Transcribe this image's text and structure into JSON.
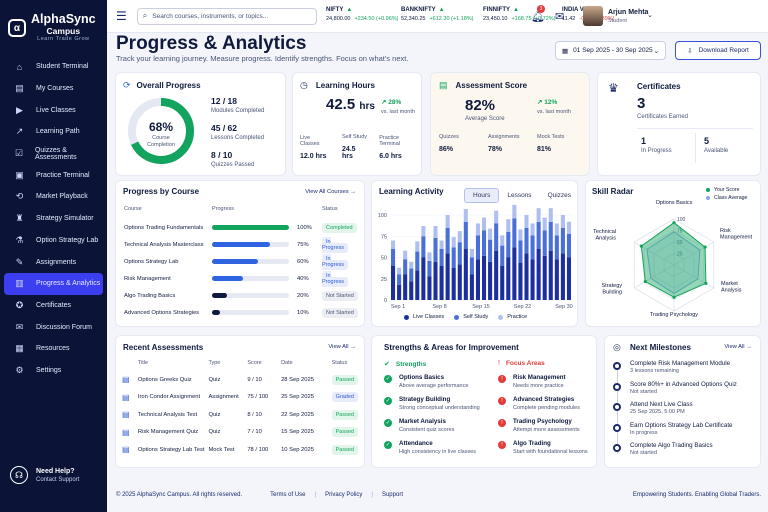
{
  "brand": {
    "name": "AlphaSync",
    "sub": "Campus",
    "tagline": "Learn  Trade  Grow"
  },
  "sidebar": {
    "items": [
      {
        "label": "Student Terminal",
        "icon": "home-icon",
        "glyph": "⌂"
      },
      {
        "label": "My Courses",
        "icon": "book-icon",
        "glyph": "▤"
      },
      {
        "label": "Live Classes",
        "icon": "video-icon",
        "glyph": "▶"
      },
      {
        "label": "Learning Path",
        "icon": "trend-icon",
        "glyph": "↗"
      },
      {
        "label": "Quizzes & Assessments",
        "icon": "quiz-icon",
        "glyph": "☑"
      },
      {
        "label": "Practice Terminal",
        "icon": "terminal-icon",
        "glyph": "▣"
      },
      {
        "label": "Market Playback",
        "icon": "playback-icon",
        "glyph": "⟲"
      },
      {
        "label": "Strategy Simulator",
        "icon": "simulator-icon",
        "glyph": "♜"
      },
      {
        "label": "Option Strategy Lab",
        "icon": "lab-icon",
        "glyph": "⚗"
      },
      {
        "label": "Assignments",
        "icon": "assignment-icon",
        "glyph": "✎"
      },
      {
        "label": "Progress & Analytics",
        "icon": "chart-icon",
        "glyph": "▥"
      },
      {
        "label": "Certificates",
        "icon": "certificate-icon",
        "glyph": "✪"
      },
      {
        "label": "Discussion Forum",
        "icon": "forum-icon",
        "glyph": "✉"
      },
      {
        "label": "Resources",
        "icon": "resources-icon",
        "glyph": "▦"
      },
      {
        "label": "Settings",
        "icon": "gear-icon",
        "glyph": "⚙"
      }
    ],
    "active": "Progress & Analytics",
    "help_title": "Need Help?",
    "help_sub": "Contact Support"
  },
  "topbar": {
    "search_placeholder": "Search courses, instruments, or topics...",
    "tickers": [
      {
        "name": "NIFTY",
        "price": "24,800.00",
        "change": "+234.50 (+0.96%)",
        "dir": "up"
      },
      {
        "name": "BANKNIFTY",
        "price": "52,340.25",
        "change": "+612.30 (+1.18%)",
        "dir": "up"
      },
      {
        "name": "FINNIFTY",
        "price": "23,450.10",
        "change": "+168.75 (+0.72%)",
        "dir": "up"
      },
      {
        "name": "INDIA VIX",
        "price": "11.42",
        "change": "-0.28 (-2.39%)",
        "dir": "down"
      }
    ],
    "notif_count": "3",
    "user_name": "Arjun Mehta",
    "user_role": "Student"
  },
  "page": {
    "title": "Progress & Analytics",
    "subtitle": "Track your learning journey. Measure progress. Identify strengths. Focus on what's next.",
    "date_range": "01 Sep 2025 - 30 Sep 2025",
    "download_label": "Download Report"
  },
  "overall": {
    "title": "Overall Progress",
    "percent": "68%",
    "percent_value": 68,
    "center_label1": "Course",
    "center_label2": "Completion",
    "stats": [
      {
        "value": "12 / 18",
        "label": "Modules Completed"
      },
      {
        "value": "45 / 62",
        "label": "Lessons Completed"
      },
      {
        "value": "8 / 10",
        "label": "Quizzes Passed"
      }
    ]
  },
  "learning_hours": {
    "title": "Learning Hours",
    "value": "42.5",
    "unit": "hrs",
    "delta": "28%",
    "delta_sub": "vs. last month",
    "breakdown": [
      {
        "label": "Live Classes",
        "value": "12.0 hrs"
      },
      {
        "label": "Self Study",
        "value": "24.5 hrs"
      },
      {
        "label": "Practice Terminal",
        "value": "6.0 hrs"
      }
    ]
  },
  "assessment": {
    "title": "Assessment Score",
    "value": "82%",
    "sub": "Average Score",
    "delta": "12%",
    "delta_sub": "vs. last month",
    "breakdown": [
      {
        "label": "Quizzes",
        "value": "86%"
      },
      {
        "label": "Assignments",
        "value": "78%"
      },
      {
        "label": "Mock Tests",
        "value": "81%"
      }
    ]
  },
  "certificates": {
    "title": "Certificates",
    "value": "3",
    "sub": "Certificates Earned",
    "in_progress": "1",
    "in_progress_label": "In Progress",
    "available": "5",
    "available_label": "Available"
  },
  "progress_by_course": {
    "title": "Progress by Course",
    "link": "View All Courses →",
    "headers": [
      "Course",
      "Progress",
      "Status"
    ],
    "rows": [
      {
        "course": "Options Trading Fundamentals",
        "percent": "100%",
        "value": 100,
        "status": "Completed",
        "color": "#12a35e"
      },
      {
        "course": "Technical Analysis Masterclass",
        "percent": "75%",
        "value": 75,
        "status": "In Progress",
        "color": "#2f63e0"
      },
      {
        "course": "Options Strategy Lab",
        "percent": "60%",
        "value": 60,
        "status": "In Progress",
        "color": "#2f63e0"
      },
      {
        "course": "Risk Management",
        "percent": "40%",
        "value": 40,
        "status": "In Progress",
        "color": "#2f63e0"
      },
      {
        "course": "Algo Trading Basics",
        "percent": "20%",
        "value": 20,
        "status": "Not Started",
        "color": "#0f1a3d"
      },
      {
        "course": "Advanced Options Strategies",
        "percent": "10%",
        "value": 10,
        "status": "Not Started",
        "color": "#0f1a3d"
      }
    ]
  },
  "chart_data": [
    {
      "type": "bar",
      "title": "Learning Activity",
      "tabs": [
        "Hours",
        "Lessons",
        "Quizzes"
      ],
      "active_tab": "Hours",
      "ylim": [
        0,
        100
      ],
      "yticks": [
        0,
        25,
        50,
        75,
        100
      ],
      "xticks": [
        "Sep 1",
        "Sep 8",
        "Sep 15",
        "Sep 22",
        "Sep 30"
      ],
      "series": [
        {
          "name": "Live Classes",
          "color": "#1c2f9e",
          "values": [
            40,
            18,
            30,
            22,
            35,
            50,
            28,
            45,
            40,
            55,
            38,
            42,
            60,
            30,
            48,
            52,
            45,
            58,
            40,
            50,
            62,
            44,
            55,
            48,
            60,
            52,
            58,
            48,
            55,
            50
          ]
        },
        {
          "name": "Self Study",
          "color": "#4a6fd8",
          "values": [
            20,
            12,
            18,
            15,
            22,
            25,
            18,
            28,
            20,
            30,
            24,
            26,
            32,
            20,
            28,
            30,
            26,
            32,
            24,
            30,
            34,
            26,
            30,
            28,
            32,
            30,
            34,
            28,
            30,
            28
          ]
        },
        {
          "name": "Practice",
          "color": "#aebff0",
          "values": [
            10,
            8,
            10,
            8,
            12,
            12,
            10,
            14,
            10,
            15,
            12,
            13,
            15,
            10,
            14,
            15,
            13,
            15,
            12,
            15,
            16,
            13,
            15,
            14,
            16,
            15,
            16,
            14,
            15,
            14
          ]
        }
      ]
    },
    {
      "type": "radar",
      "title": "Skill Radar",
      "axes": [
        "Options Basics",
        "Risk Management",
        "Market Analysis",
        "Trading Psychology",
        "Strategy Building",
        "Technical Analysis"
      ],
      "rticks": [
        25,
        50,
        75,
        100
      ],
      "rlim": [
        0,
        100
      ],
      "series": [
        {
          "name": "Your Score",
          "color": "#12a35e",
          "values": [
            92,
            78,
            80,
            70,
            72,
            82
          ]
        },
        {
          "name": "Class Average",
          "color": "#8ea7e8",
          "values": [
            72,
            65,
            60,
            62,
            58,
            68
          ]
        }
      ]
    }
  ],
  "recent_assessments": {
    "title": "Recent Assessments",
    "link": "View All →",
    "headers": [
      "Title",
      "Type",
      "Score",
      "Date",
      "Status"
    ],
    "rows": [
      {
        "title": "Options Greeks Quiz",
        "type": "Quiz",
        "score": "9 / 10",
        "date": "28 Sep 2025",
        "status": "Passed"
      },
      {
        "title": "Iron Condor Assignment",
        "type": "Assignment",
        "score": "75 / 100",
        "date": "25 Sep 2025",
        "status": "Graded"
      },
      {
        "title": "Technical Analysis Test",
        "type": "Quiz",
        "score": "8 / 10",
        "date": "22 Sep 2025",
        "status": "Passed"
      },
      {
        "title": "Risk Management Quiz",
        "type": "Quiz",
        "score": "7 / 10",
        "date": "15 Sep 2025",
        "status": "Passed"
      },
      {
        "title": "Options Strategy Lab Test",
        "type": "Mock Test",
        "score": "78 / 100",
        "date": "10 Sep 2025",
        "status": "Passed"
      }
    ]
  },
  "strengths": {
    "title": "Strengths & Areas for Improvement",
    "strengths_label": "Strengths",
    "focus_label": "Focus Areas",
    "strengths_items": [
      {
        "t": "Options Basics",
        "s": "Above average performance"
      },
      {
        "t": "Strategy Building",
        "s": "Strong conceptual understanding"
      },
      {
        "t": "Market Analysis",
        "s": "Consistent quiz scores"
      },
      {
        "t": "Attendance",
        "s": "High consistency in live classes"
      }
    ],
    "focus_items": [
      {
        "t": "Risk Management",
        "s": "Needs more practice"
      },
      {
        "t": "Advanced Strategies",
        "s": "Complete pending modules"
      },
      {
        "t": "Trading Psychology",
        "s": "Attempt more assessments"
      },
      {
        "t": "Algo Trading",
        "s": "Start with foundational lessons"
      }
    ]
  },
  "milestones": {
    "title": "Next Milestones",
    "link": "View All →",
    "items": [
      {
        "t": "Complete Risk Management Module",
        "s": "3 lessons remaining"
      },
      {
        "t": "Score 80%+ in Advanced Options Quiz",
        "s": "Not started"
      },
      {
        "t": "Attend Next Live Class",
        "s": "25 Sep 2025, 5:00 PM"
      },
      {
        "t": "Earn Options Strategy Lab Certificate",
        "s": "In progress"
      },
      {
        "t": "Complete Algo Trading Basics",
        "s": "Not started"
      }
    ]
  },
  "footer": {
    "copyright": "© 2025 AlphaSync Campus. All rights reserved.",
    "links": [
      "Terms of Use",
      "Privacy Policy",
      "Support"
    ],
    "tagline": "Empowering Students. Enabling Global Traders."
  }
}
